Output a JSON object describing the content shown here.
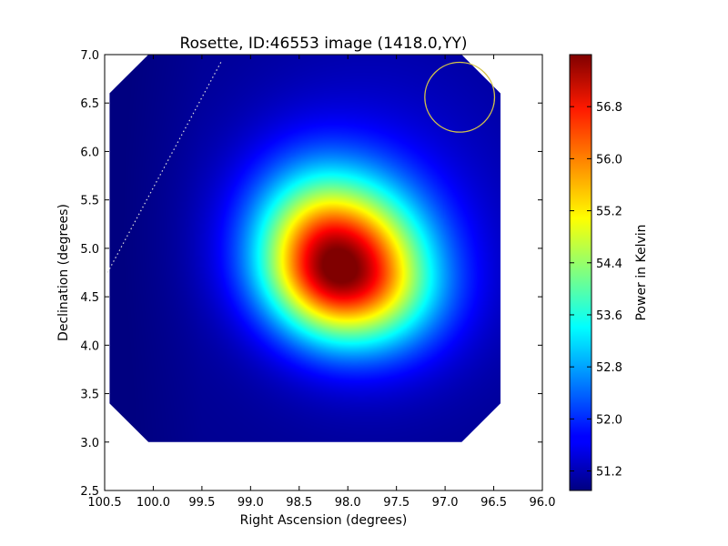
{
  "chart_data": {
    "type": "heatmap",
    "title": "Rosette, ID:46553 image (1418.0,YY)",
    "xlabel": "Right Ascension (degrees)",
    "ylabel": "Declination (degrees)",
    "xlim": [
      100.5,
      96.0
    ],
    "ylim": [
      2.5,
      7.0
    ],
    "x_ticks": [
      100.5,
      100.0,
      99.5,
      99.0,
      98.5,
      98.0,
      97.5,
      97.0,
      96.5,
      96.0
    ],
    "x_tick_labels": [
      "100.5",
      "100.0",
      "99.5",
      "99.0",
      "98.5",
      "98.0",
      "97.5",
      "97.0",
      "96.5",
      "96.0"
    ],
    "y_ticks": [
      2.5,
      3.0,
      3.5,
      4.0,
      4.5,
      5.0,
      5.5,
      6.0,
      6.5,
      7.0
    ],
    "y_tick_labels": [
      "2.5",
      "3.0",
      "3.5",
      "4.0",
      "4.5",
      "5.0",
      "5.5",
      "6.0",
      "6.5",
      "7.0"
    ],
    "colormap": "jet",
    "colorbar": {
      "label": "Power in Kelvin",
      "range": [
        50.9,
        57.6
      ],
      "ticks": [
        51.2,
        52.0,
        52.8,
        53.6,
        54.4,
        55.2,
        56.0,
        56.8
      ],
      "tick_labels": [
        "51.2",
        "52.0",
        "52.8",
        "53.6",
        "54.4",
        "55.2",
        "56.0",
        "56.8"
      ]
    },
    "image_footprint": {
      "ra_range": [
        100.45,
        96.43
      ],
      "dec_range": [
        3.0,
        7.0
      ],
      "corner_cut_ra": 0.4,
      "corner_cut_dec": 0.4
    },
    "peak": {
      "ra": 98.1,
      "dec": 4.8,
      "value": 57.4
    },
    "background_value": 51.0,
    "beam_circle": {
      "ra": 96.85,
      "dec": 6.56,
      "radius_dec": 0.36,
      "color": "#d4c44a"
    },
    "dotted_line": {
      "from": [
        100.47,
        4.75
      ],
      "to": [
        99.3,
        6.93
      ],
      "color": "#dddddd"
    },
    "grid": false
  }
}
